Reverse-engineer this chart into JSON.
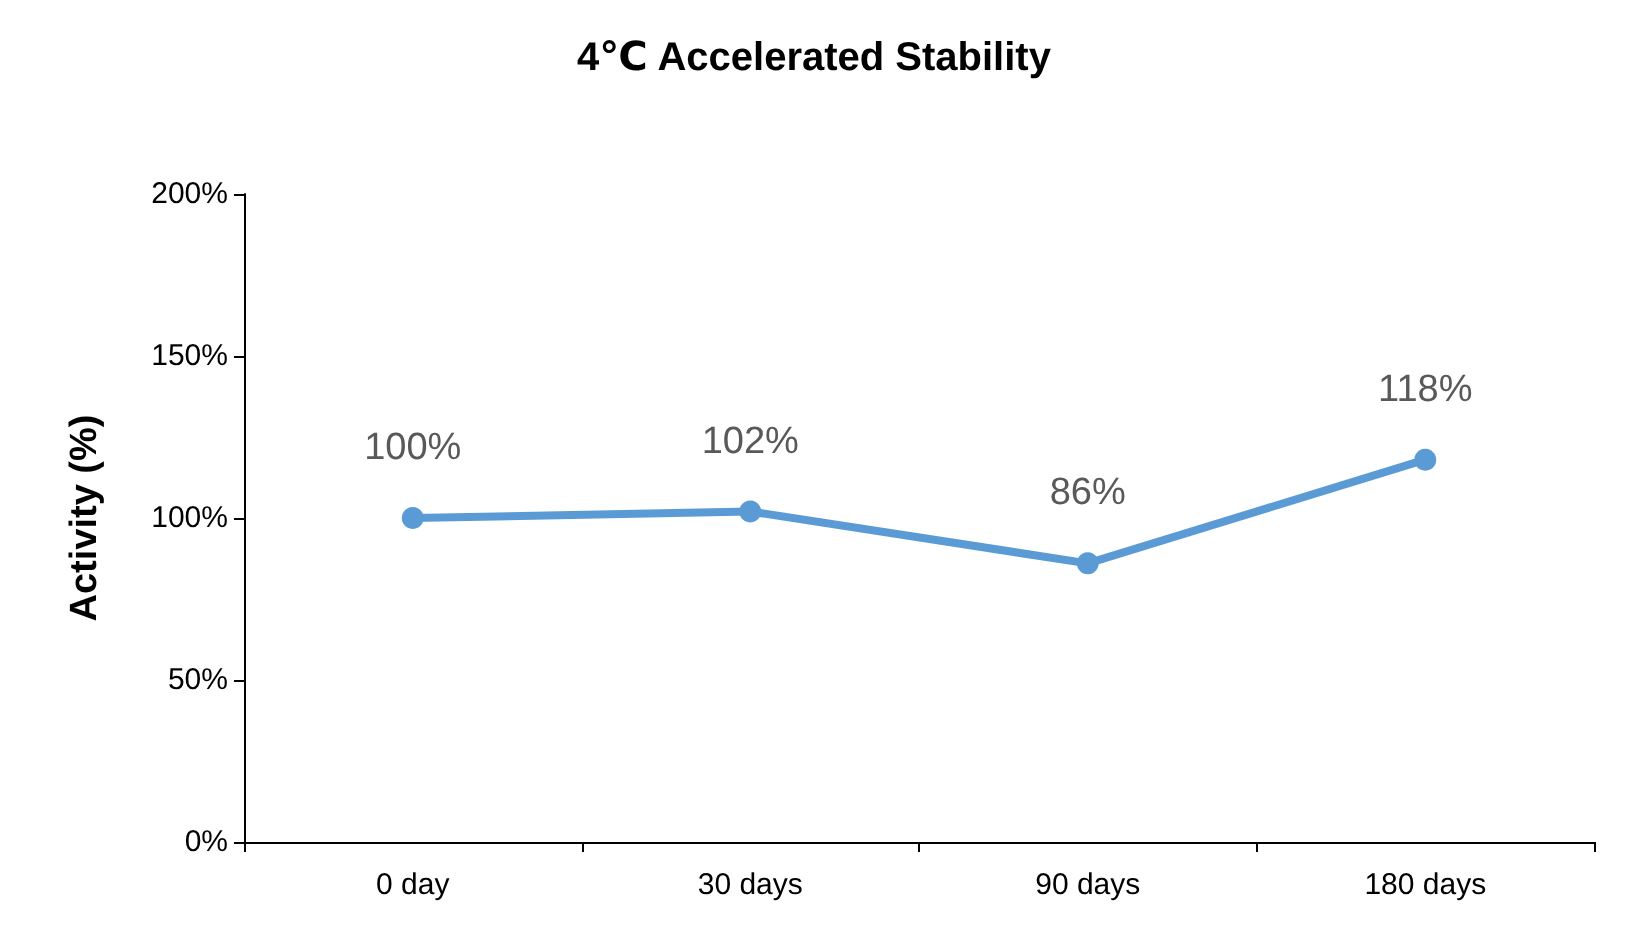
{
  "chart_data": {
    "type": "line",
    "title": "4℃ Accelerated Stability",
    "ylabel": "Activity (%)",
    "categories": [
      "0 day",
      "30 days",
      "90 days",
      "180 days"
    ],
    "series": [
      {
        "color": "#5b9bd5",
        "values": [
          100,
          102,
          86,
          118
        ],
        "value_labels": [
          "100%",
          "102%",
          "86%",
          "118%"
        ]
      }
    ],
    "ylim": [
      0,
      200
    ],
    "yticks": [
      {
        "value": 0,
        "label": "0%"
      },
      {
        "value": 50,
        "label": "50%"
      },
      {
        "value": 100,
        "label": "100%"
      },
      {
        "value": 150,
        "label": "150%"
      },
      {
        "value": 200,
        "label": "200%"
      }
    ],
    "grid": false,
    "marker": "circle",
    "line_style": "solid"
  }
}
